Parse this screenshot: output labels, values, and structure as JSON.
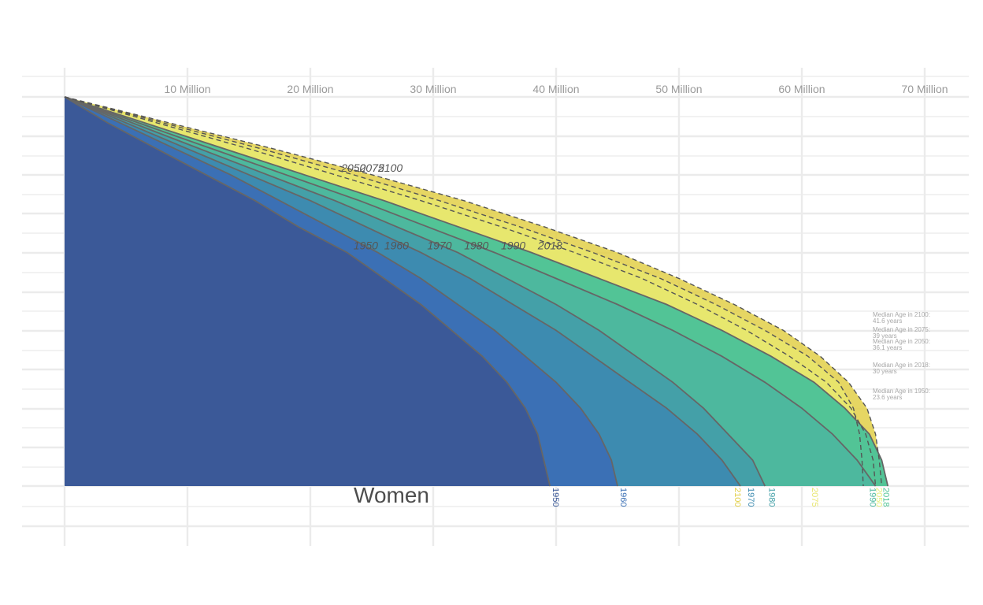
{
  "chart_data": {
    "type": "area",
    "x_axis": {
      "ticks": [
        10,
        20,
        30,
        40,
        50,
        60,
        70
      ],
      "tick_labels": [
        "10 Million",
        "20 Million",
        "30 Million",
        "40 Million",
        "50 Million",
        "60 Million",
        "70 Million"
      ],
      "range": [
        0,
        73.5
      ],
      "position": "top"
    },
    "y_axis": {
      "tick_labels": [],
      "age_range": [
        100,
        0
      ]
    },
    "grid": true,
    "gender_label": "Women",
    "series": [
      {
        "name": "1950",
        "kind": "historical",
        "color": "#3b5998",
        "label": "1950",
        "total": 39.5,
        "cum": [
          0,
          3.5,
          7.5,
          11.5,
          15.5,
          19,
          23,
          26,
          29,
          31.5,
          34,
          36,
          37.5,
          38.5,
          39,
          39.5
        ]
      },
      {
        "name": "1960",
        "kind": "historical",
        "color": "#3b70b5",
        "label": "1960",
        "total": 45,
        "cum": [
          0,
          4.5,
          9,
          13.5,
          17.5,
          21.5,
          25.5,
          29,
          32,
          35,
          37.5,
          40,
          42,
          43.5,
          44.5,
          45
        ]
      },
      {
        "name": "1970",
        "kind": "historical",
        "color": "#3d8bb0",
        "label": "1970",
        "total": 55,
        "cum": [
          0,
          5,
          10,
          15,
          20,
          24.5,
          29,
          33,
          36.5,
          40,
          43,
          46,
          49,
          51.5,
          53.5,
          55
        ]
      },
      {
        "name": "1980",
        "kind": "historical",
        "color": "#44a0a8",
        "label": "1980",
        "total": 57,
        "cum": [
          0,
          5.5,
          11,
          16.5,
          22,
          27,
          32,
          36,
          40,
          43.5,
          46.5,
          49.5,
          52,
          54,
          56,
          57
        ]
      },
      {
        "name": "1990",
        "kind": "historical",
        "color": "#4db89e",
        "label": "1990",
        "total": 66,
        "cum": [
          0,
          6,
          12,
          18,
          24,
          29.5,
          35,
          40,
          45,
          49.5,
          53.5,
          57,
          60,
          62.5,
          64.5,
          66
        ]
      },
      {
        "name": "2018",
        "kind": "historical",
        "color": "#52c496",
        "label": "2018",
        "total": 67,
        "cum": [
          0,
          6.5,
          13,
          19.5,
          26,
          32,
          38,
          43.5,
          49,
          53.5,
          57.5,
          61,
          63.5,
          65.5,
          66.5,
          67
        ]
      },
      {
        "name": "2050",
        "kind": "projection",
        "color": "#e4ef7a",
        "label": "2050",
        "total": 66,
        "cum": [
          0,
          7.5,
          15,
          22,
          29,
          35.5,
          41.5,
          47,
          51.5,
          55.5,
          59,
          62,
          64,
          65.2,
          65.8,
          66
        ]
      },
      {
        "name": "2075",
        "kind": "projection",
        "color": "#e7e66c",
        "label": "2075",
        "total": 65,
        "cum": [
          0,
          8,
          16,
          23.5,
          30.5,
          37,
          43,
          48.5,
          53,
          57,
          60.5,
          63,
          64.2,
          64.7,
          64.9,
          65
        ]
      },
      {
        "name": "2100",
        "kind": "projection",
        "color": "#e2cf48",
        "label": "2100",
        "total": 66.5,
        "cum": [
          0,
          8.5,
          17,
          25,
          32.5,
          39,
          45,
          50,
          54.5,
          58.5,
          61.5,
          63.8,
          65.3,
          66,
          66.3,
          66.5
        ]
      }
    ],
    "year_tags": [
      {
        "year": "1950",
        "x": 40,
        "color": "#3b5998"
      },
      {
        "year": "1960",
        "x": 45.5,
        "color": "#3b70b5"
      },
      {
        "year": "2100",
        "x": 54.8,
        "color": "#e2cf48"
      },
      {
        "year": "1970",
        "x": 55.9,
        "color": "#3d8bb0"
      },
      {
        "year": "1980",
        "x": 57.6,
        "color": "#44a0a8"
      },
      {
        "year": "2075",
        "x": 61.1,
        "color": "#e7e66c"
      },
      {
        "year": "1990",
        "x": 65.8,
        "color": "#4db89e"
      },
      {
        "year": "2050",
        "x": 66.3,
        "color": "#e4ef7a"
      },
      {
        "year": "2018",
        "x": 66.9,
        "color": "#52c496"
      }
    ],
    "median_notes": [
      {
        "label": "Median Age in 2100:",
        "value": "41.6 years"
      },
      {
        "label": "Median Age in 2075:",
        "value": "39 years"
      },
      {
        "label": "Median Age in 2050:",
        "value": "36.1 years"
      },
      {
        "label": "Median Age in 2018:",
        "value": "30 years"
      },
      {
        "label": "Median Age in 1950:",
        "value": "23.6 years"
      }
    ]
  }
}
